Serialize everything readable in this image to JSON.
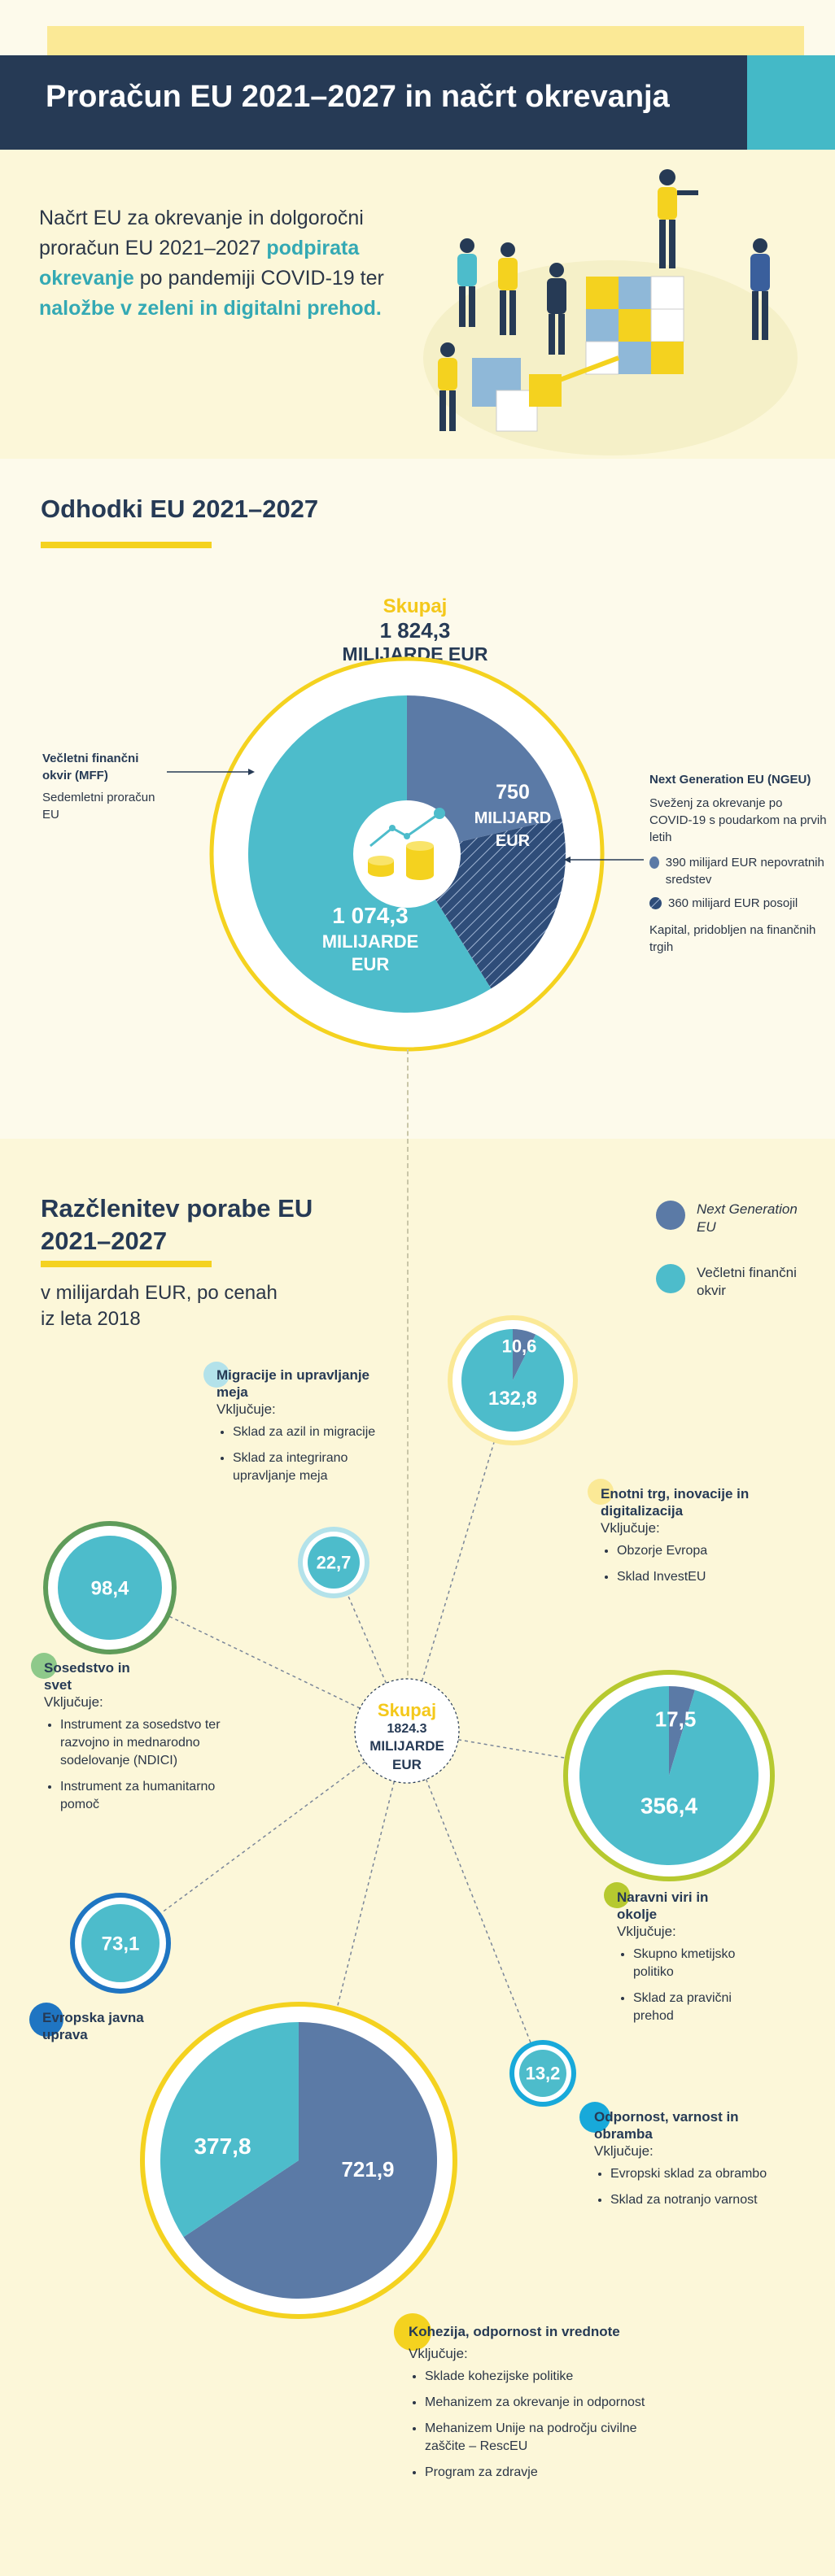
{
  "title": "Proračun EU 2021–2027 in načrt okrevanja",
  "intro": {
    "part1": "Načrt EU za okrevanje in dolgoročni proračun EU 2021–2027 ",
    "highlight1": "podpirata okrevanje",
    "part2": " po pandemiji COVID-19 ter ",
    "highlight2": "naložbe v zeleni in digitalni prehod."
  },
  "section1": {
    "title": "Odhodki EU 2021–2027",
    "total_label": "Skupaj",
    "total_value": "1 824,3",
    "total_unit": "MILIJARDE EUR",
    "mff": {
      "title": "Večletni finančni okvir (MFF)",
      "desc": "Sedemletni proračun EU",
      "value": "1 074,3",
      "unit1": "MILIJARDE",
      "unit2": "EUR"
    },
    "ngeu": {
      "title": "Next Generation EU (NGEU)",
      "desc": "Sveženj za okrevanje po COVID-19 s poudarkom na prvih letih",
      "grants": "390 milijard EUR nepovratnih sredstev",
      "loans": "360 milijard EUR posojil",
      "capital": "Kapital, pridobljen na finančnih trgih",
      "value": "750",
      "unit1": "MILIJARD",
      "unit2": "EUR"
    }
  },
  "section2": {
    "title": "Razčlenitev porabe EU 2021–2027",
    "subtitle": "v milijardah EUR, po cenah iz leta 2018",
    "legend": {
      "ngeu": "Next Generation EU",
      "mff": "Večletni finančni okvir"
    },
    "center_label": "Skupaj",
    "center_value": "1824.3",
    "center_unit1": "MILIJARDE",
    "center_unit2": "EUR",
    "includes": "Vključuje:",
    "categories": [
      {
        "title": "Migracije in upravljanje meja",
        "bullets": [
          "Sklad za azil in migracije",
          "Sklad za integrirano upravljanje meja"
        ]
      },
      {
        "title": "Enotni trg, inovacije in digitalizacija",
        "bullets": [
          "Obzorje Evropa",
          "Sklad InvestEU"
        ]
      },
      {
        "title": "Sosedstvo in svet",
        "bullets": [
          "Instrument za sosedstvo ter razvojno in mednarodno sodelovanje (NDICI)",
          "Instrument za humanitarno pomoč"
        ]
      },
      {
        "title": "Naravni viri in okolje",
        "bullets": [
          "Skupno kmetijsko politiko",
          "Sklad za pravični prehod"
        ]
      },
      {
        "title": "Evropska javna uprava",
        "bullets": []
      },
      {
        "title": "Odpornost, varnost in obramba",
        "bullets": [
          "Evropski sklad za obrambo",
          "Sklad za notranjo varnost"
        ]
      },
      {
        "title": "Kohezija, odpornost in vrednote",
        "bullets": [
          "Sklade kohezijske politike",
          "Mehanizem za okrevanje in odpornost",
          "Mehanizem Unije na področju civilne zaščite – RescEU",
          "Program za zdravje"
        ]
      }
    ]
  },
  "chart_data": [
    {
      "type": "pie",
      "title": "Odhodki EU 2021–2027",
      "total": 1824.3,
      "unit": "MILIJARDE EUR",
      "slices": [
        {
          "name": "Next Generation EU (NGEU)",
          "value": 750,
          "subparts": [
            {
              "name": "nepovratna sredstva",
              "value": 390
            },
            {
              "name": "posojila",
              "value": 360
            }
          ]
        },
        {
          "name": "Večletni finančni okvir (MFF)",
          "value": 1074.3
        }
      ]
    },
    {
      "type": "pie",
      "title": "Razčlenitev porabe EU 2021–2027",
      "subtitle": "v milijardah EUR, po cenah iz leta 2018",
      "series_names": [
        "Next Generation EU",
        "Večletni finančni okvir"
      ],
      "categories": [
        "Migracije in upravljanje meja",
        "Enotni trg, inovacije in digitalizacija",
        "Sosedstvo in svet",
        "Naravni viri in okolje",
        "Evropska javna uprava",
        "Odpornost, varnost in obramba",
        "Kohezija, odpornost in vrednote"
      ],
      "ngeu_values": [
        0,
        10.6,
        0,
        17.5,
        0,
        0,
        721.9
      ],
      "mff_values": [
        22.7,
        132.8,
        98.4,
        356.4,
        73.1,
        13.2,
        377.8
      ],
      "labels": {
        "migracije_mff": "22,7",
        "enotni_ngeu": "10,6",
        "enotni_mff": "132,8",
        "sosedstvo_mff": "98,4",
        "naravni_ngeu": "17,5",
        "naravni_mff": "356,4",
        "uprava_mff": "73,1",
        "odpornost_mff": "13,2",
        "kohezija_ngeu": "721,9",
        "kohezija_mff": "377,8"
      }
    }
  ],
  "colors": {
    "navy": "#263a55",
    "teal": "#4dbccb",
    "slate": "#5b7aa6",
    "yellow": "#f4d21f",
    "lightyellow": "#fbe996",
    "green": "#b6c92f",
    "darkgreen": "#5f9c5a",
    "blue": "#1f75c2",
    "cyan": "#18a9da"
  }
}
